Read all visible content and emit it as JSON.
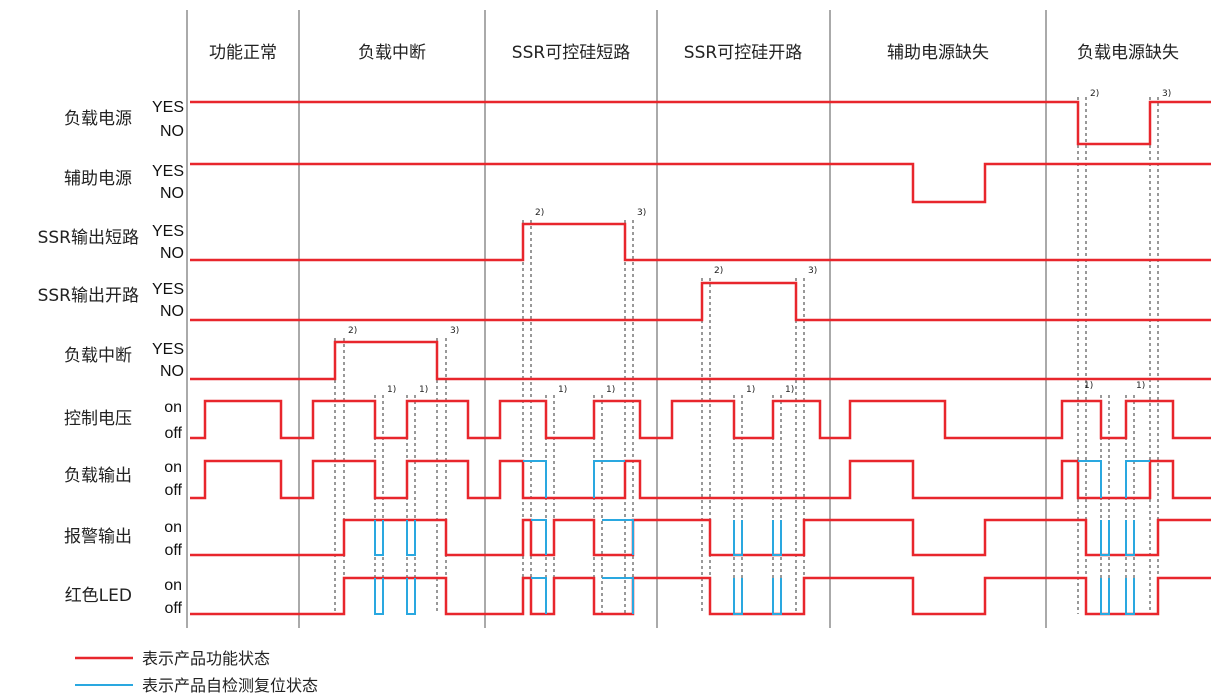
{
  "colors": {
    "functional": "#e8262c",
    "self_test": "#2aa8e0",
    "divider": "#555555",
    "dashed": "#333333"
  },
  "columns": [
    "功能正常",
    "负载中断",
    "SSR可控硅短路",
    "SSR可控硅开路",
    "辅助电源缺失",
    "负载电源缺失"
  ],
  "rows": [
    {
      "label": "负载电源",
      "high": "YES",
      "low": "NO"
    },
    {
      "label": "辅助电源",
      "high": "YES",
      "low": "NO"
    },
    {
      "label": "SSR输出短路",
      "high": "YES",
      "low": "NO"
    },
    {
      "label": "SSR输出开路",
      "high": "YES",
      "low": "NO"
    },
    {
      "label": "负载中断",
      "high": "YES",
      "low": "NO"
    },
    {
      "label": "控制电压",
      "high": "on",
      "low": "off"
    },
    {
      "label": "负载输出",
      "high": "on",
      "low": "off"
    },
    {
      "label": "报警输出",
      "high": "on",
      "low": "off"
    },
    {
      "label": "红色LED",
      "high": "on",
      "low": "off"
    }
  ],
  "markers": {
    "one": "1)",
    "two": "2)",
    "three": "3)"
  },
  "legend": [
    {
      "text": "表示产品功能状态",
      "color_key": "functional"
    },
    {
      "text": "表示产品自检测复位状态",
      "color_key": "self_test"
    }
  ]
}
